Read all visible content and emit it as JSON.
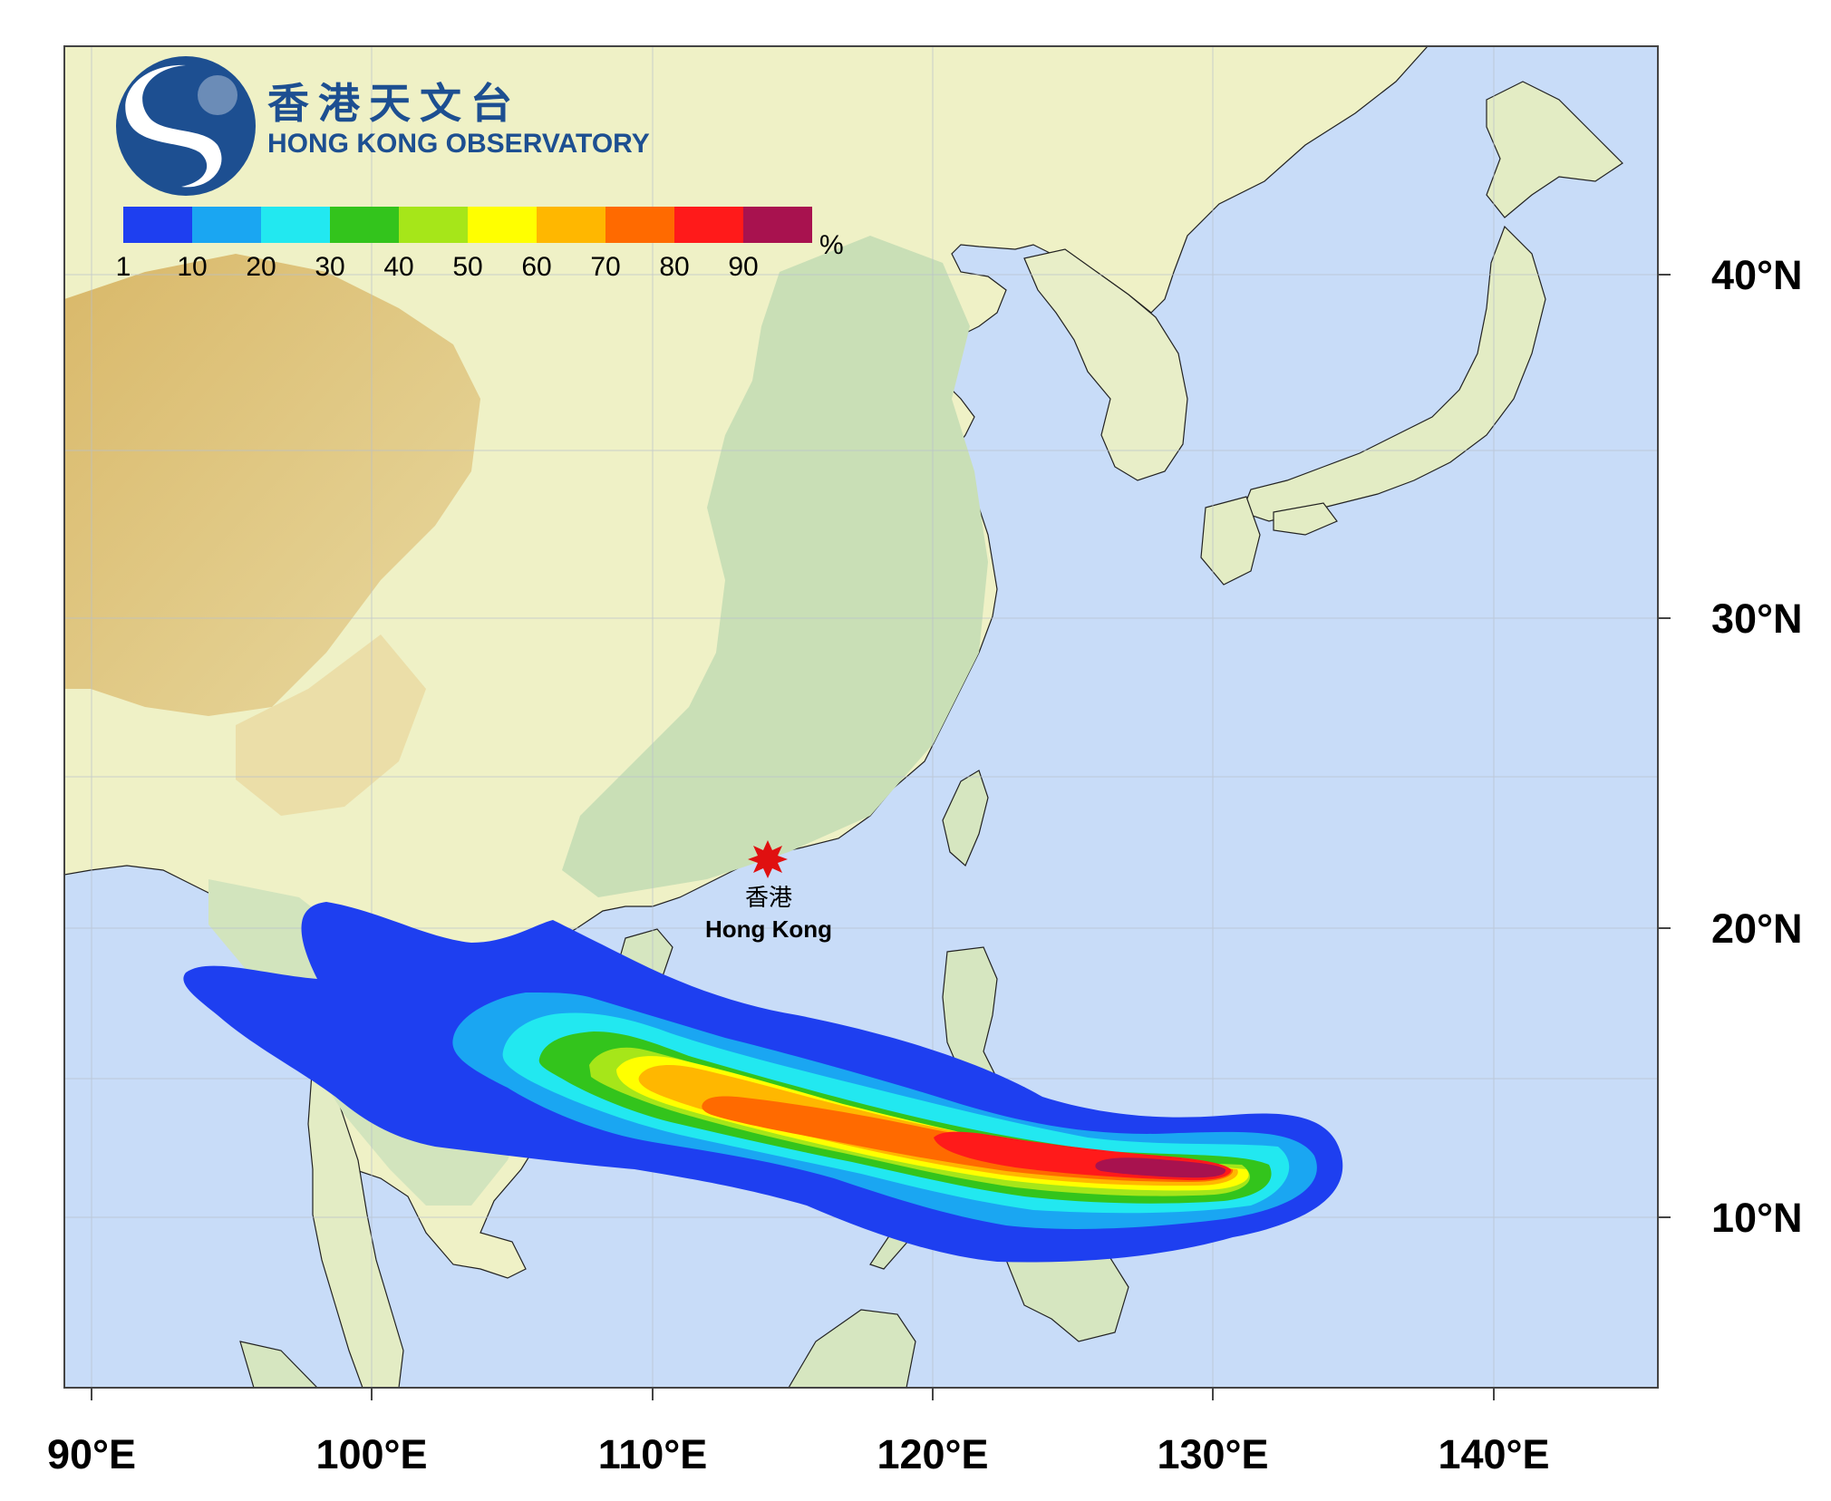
{
  "logo": {
    "name_zh": "香港天文台",
    "name_en": "HONG KONG OBSERVATORY",
    "color": "#1d4f91"
  },
  "colorbar": {
    "unit": "%",
    "colors": [
      "#1e3ff0",
      "#1aa6f2",
      "#22e8f0",
      "#33c41c",
      "#a6e619",
      "#ffff00",
      "#ffb700",
      "#ff6a00",
      "#ff1a1a",
      "#a8124f"
    ],
    "labels": [
      "1",
      "10",
      "20",
      "30",
      "40",
      "50",
      "60",
      "70",
      "80",
      "90"
    ]
  },
  "axes": {
    "longitude_labels": [
      "90°E",
      "100°E",
      "110°E",
      "120°E",
      "130°E",
      "140°E"
    ],
    "latitude_labels": [
      "10°N",
      "20°N",
      "30°N",
      "40°N"
    ]
  },
  "marker": {
    "name_zh": "香港",
    "name_en": "Hong Kong",
    "lon": 114.2,
    "lat": 22.3,
    "color": "#e01010"
  },
  "colors": {
    "ocean": "#c8dcf8",
    "land_low": "#cfe3bf",
    "land_mid": "#f2f0c8",
    "land_high": "#d6b45a"
  }
}
